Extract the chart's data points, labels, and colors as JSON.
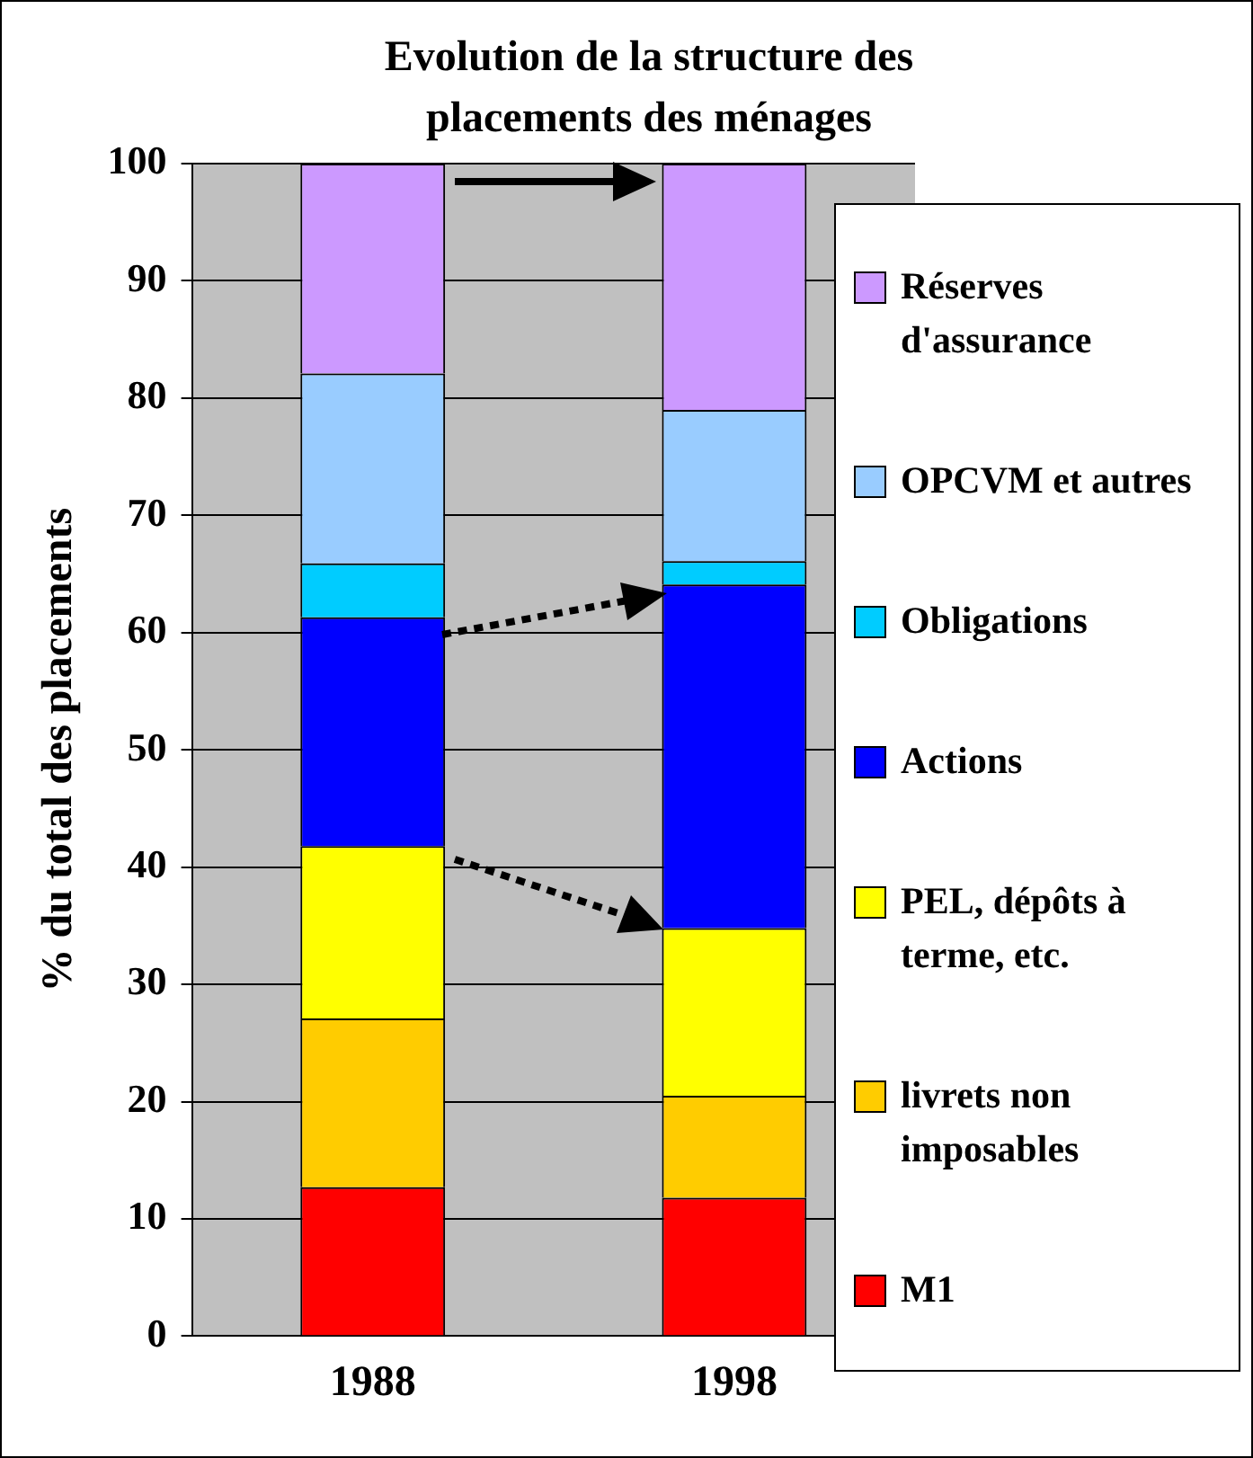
{
  "chart_data": {
    "type": "bar",
    "title": "Evolution de la structure des placements des ménages",
    "ylabel": "% du total des placements",
    "categories": [
      "1988",
      "1998"
    ],
    "stacked": true,
    "ylim": [
      0,
      100
    ],
    "yticks": [
      0,
      10,
      20,
      30,
      40,
      50,
      60,
      70,
      80,
      90,
      100
    ],
    "grid": "y",
    "legend": "right",
    "series": [
      {
        "name": "M1",
        "color": "#ff0000",
        "values": [
          12.7,
          11.8
        ]
      },
      {
        "name": "livrets non imposables",
        "color": "#ffcc00",
        "values": [
          14.4,
          8.7
        ]
      },
      {
        "name": "PEL, dépôts à terme, etc.",
        "color": "#ffff00",
        "values": [
          14.7,
          14.3
        ]
      },
      {
        "name": "Actions",
        "color": "#0000ff",
        "values": [
          19.5,
          29.3
        ]
      },
      {
        "name": "Obligations",
        "color": "#00ccff",
        "values": [
          4.6,
          2.0
        ]
      },
      {
        "name": "OPCVM et autres",
        "color": "#99ccff",
        "values": [
          16.2,
          12.9
        ]
      },
      {
        "name": "Réserves d'assurance",
        "color": "#cc99ff",
        "values": [
          17.9,
          21.0
        ]
      }
    ]
  }
}
